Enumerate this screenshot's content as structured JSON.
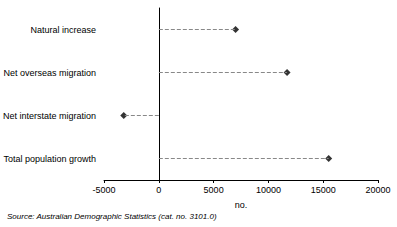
{
  "chart_data": {
    "type": "scatter",
    "orientation": "horizontal",
    "categories": [
      "Natural increase",
      "Net overseas migration",
      "Net interstate migration",
      "Total population growth"
    ],
    "values": [
      7000,
      11700,
      -3200,
      15500
    ],
    "color": "#000000",
    "marker": "diamond",
    "line_style": "dashed",
    "x_label": "no.",
    "xlim": [
      -5000,
      20000
    ],
    "xticks": [
      -5000,
      0,
      5000,
      10000,
      15000,
      20000
    ],
    "grid": false,
    "source": "Source: Australian Demographic Statistics (cat. no. 3101.0)"
  }
}
